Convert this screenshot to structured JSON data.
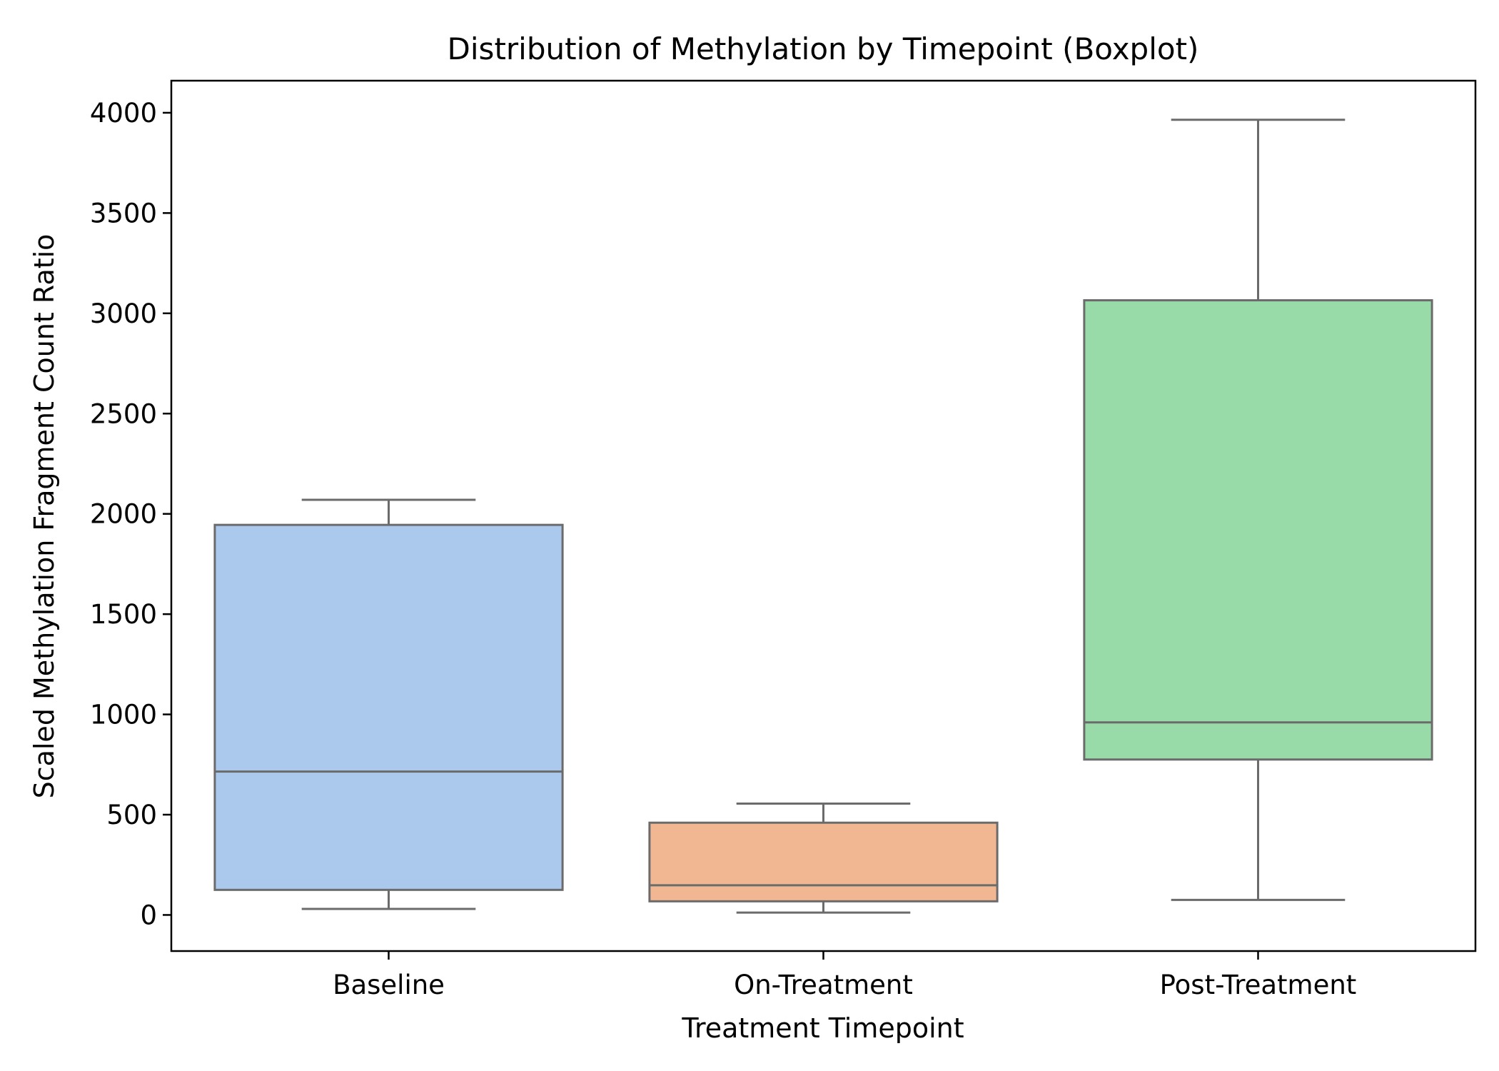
{
  "chart_data": {
    "type": "boxplot",
    "title": "Distribution of Methylation by Timepoint (Boxplot)",
    "xlabel": "Treatment Timepoint",
    "ylabel": "Scaled Methylation Fragment Count Ratio",
    "categories": [
      "Baseline",
      "On-Treatment",
      "Post-Treatment"
    ],
    "boxes": [
      {
        "category": "Baseline",
        "whisker_low": 30,
        "q1": 125,
        "median": 715,
        "q3": 1945,
        "whisker_high": 2070,
        "color": "#abc9ed"
      },
      {
        "category": "On-Treatment",
        "whisker_low": 12,
        "q1": 68,
        "median": 148,
        "q3": 460,
        "whisker_high": 555,
        "color": "#f1b793"
      },
      {
        "category": "Post-Treatment",
        "whisker_low": 75,
        "q1": 775,
        "median": 960,
        "q3": 3065,
        "whisker_high": 3965,
        "color": "#98dba8"
      }
    ],
    "ylim": [
      -180,
      4160
    ],
    "yticks": [
      0,
      500,
      1000,
      1500,
      2000,
      2500,
      3000,
      3500,
      4000
    ],
    "ytick_labels": [
      "0",
      "500",
      "1000",
      "1500",
      "2000",
      "2500",
      "3000",
      "3500",
      "4000"
    ],
    "grid": false,
    "box_edge_color": "#6b6b6b"
  }
}
